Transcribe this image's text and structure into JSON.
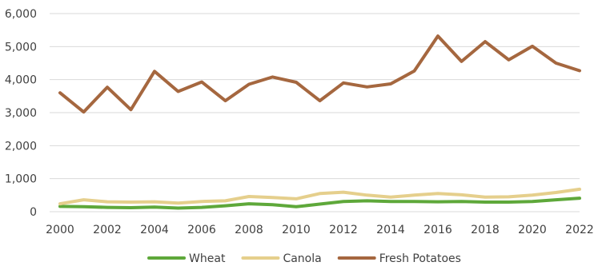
{
  "chart_data": {
    "type": "line",
    "title": "",
    "xlabel": "",
    "ylabel": "",
    "x": [
      2000,
      2001,
      2002,
      2003,
      2004,
      2005,
      2006,
      2007,
      2008,
      2009,
      2010,
      2011,
      2012,
      2013,
      2014,
      2015,
      2016,
      2017,
      2018,
      2019,
      2020,
      2021,
      2022
    ],
    "xticks": [
      "2000",
      "2002",
      "2004",
      "2006",
      "2008",
      "2010",
      "2012",
      "2014",
      "2016",
      "2018",
      "2020",
      "2022"
    ],
    "yticks": [
      "0",
      "1,000",
      "2,000",
      "3,000",
      "4,000",
      "5,000",
      "6,000"
    ],
    "ylim": [
      0,
      6000
    ],
    "grid": "horizontal",
    "legend_position": "bottom",
    "series": [
      {
        "name": "Wheat",
        "color": "#5ea83a",
        "values": [
          160,
          150,
          130,
          120,
          140,
          110,
          130,
          180,
          240,
          210,
          150,
          230,
          310,
          330,
          310,
          310,
          300,
          310,
          290,
          290,
          310,
          360,
          410
        ]
      },
      {
        "name": "Canola",
        "color": "#e5cf8c",
        "values": [
          240,
          360,
          300,
          290,
          300,
          260,
          310,
          330,
          460,
          430,
          390,
          550,
          590,
          500,
          440,
          500,
          550,
          510,
          440,
          450,
          500,
          580,
          680
        ]
      },
      {
        "name": "Fresh Potatoes",
        "color": "#a5673f",
        "values": [
          3600,
          3020,
          3770,
          3090,
          4250,
          3640,
          3930,
          3360,
          3860,
          4080,
          3920,
          3360,
          3900,
          3780,
          3870,
          4260,
          5320,
          4550,
          5150,
          4600,
          5010,
          4500,
          4270
        ]
      }
    ]
  }
}
